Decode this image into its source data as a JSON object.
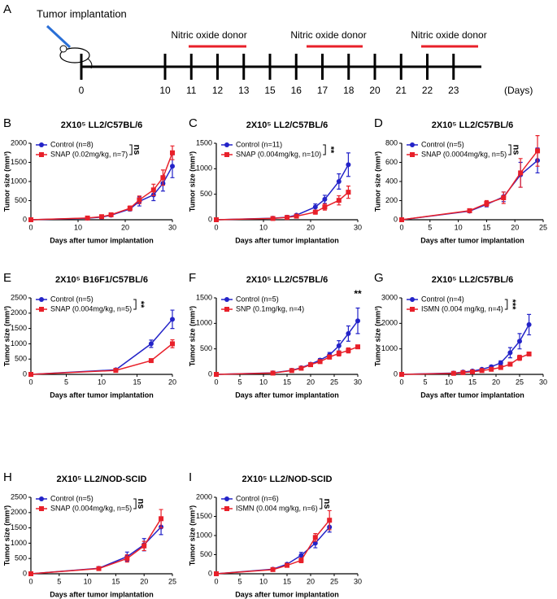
{
  "timeline": {
    "panel": "A",
    "label": "Tumor implantation",
    "treatment_labels": [
      "Nitric oxide donor",
      "Nitric oxide donor",
      "Nitric oxide donor"
    ],
    "days": [
      0,
      10,
      11,
      12,
      13,
      15,
      16,
      17,
      18,
      20,
      21,
      22,
      23
    ],
    "unit": "(Days)"
  },
  "chart_data": [
    {
      "type": "line",
      "panel": "B",
      "title": "2X10⁵ LL2/C57BL/6",
      "xlabel": "Days after tumor implantation",
      "ylabel": "Tumor size (mm³)",
      "annotation": "ns",
      "significance_bracket": true,
      "x": [
        0,
        12,
        15,
        17,
        21,
        23,
        26,
        28,
        30
      ],
      "xlim": [
        0,
        30
      ],
      "xticks": [
        0,
        10,
        20,
        30
      ],
      "ylim": [
        0,
        2000
      ],
      "yticks": [
        0,
        500,
        1000,
        1500,
        2000
      ],
      "series": [
        {
          "name": "Control (n=8)",
          "color": "#2323c8",
          "marker": "circle",
          "values": [
            0,
            40,
            70,
            120,
            280,
            480,
            650,
            950,
            1400
          ],
          "errors": [
            null,
            10,
            15,
            20,
            50,
            120,
            150,
            200,
            300
          ]
        },
        {
          "name": "SNAP (0.02mg/kg, n=7)",
          "color": "#e8202a",
          "marker": "square",
          "values": [
            0,
            45,
            80,
            130,
            300,
            520,
            780,
            1100,
            1750
          ],
          "errors": [
            null,
            10,
            15,
            25,
            60,
            100,
            150,
            200,
            180
          ]
        }
      ]
    },
    {
      "type": "line",
      "panel": "C",
      "title": "2X10⁵ LL2/C57BL/6",
      "xlabel": "Days after tumor implantation",
      "ylabel": "Tumor size (mm³)",
      "annotation": "**",
      "significance_bracket": true,
      "x": [
        0,
        12,
        15,
        17,
        21,
        23,
        26,
        28
      ],
      "xlim": [
        0,
        30
      ],
      "xticks": [
        0,
        10,
        20,
        30
      ],
      "ylim": [
        0,
        1500
      ],
      "yticks": [
        0,
        500,
        1000,
        1500
      ],
      "series": [
        {
          "name": "Control (n=11)",
          "color": "#2323c8",
          "marker": "circle",
          "values": [
            0,
            30,
            50,
            90,
            250,
            400,
            750,
            1080
          ],
          "errors": [
            null,
            5,
            10,
            15,
            60,
            80,
            150,
            230
          ]
        },
        {
          "name": "SNAP (0.004mg/kg, n=10)",
          "color": "#e8202a",
          "marker": "square",
          "values": [
            0,
            25,
            45,
            70,
            150,
            250,
            380,
            540
          ],
          "errors": [
            null,
            5,
            10,
            15,
            40,
            60,
            90,
            120
          ]
        }
      ]
    },
    {
      "type": "line",
      "panel": "D",
      "title": "2X10⁵ LL2/C57BL/6",
      "xlabel": "Days after tumor implantation",
      "ylabel": "Tumor size (mm³)",
      "annotation": "ns",
      "significance_bracket": true,
      "x": [
        0,
        12,
        15,
        18,
        21,
        24
      ],
      "xlim": [
        0,
        25
      ],
      "xticks": [
        0,
        5,
        10,
        15,
        20,
        25
      ],
      "ylim": [
        0,
        800
      ],
      "yticks": [
        0,
        200,
        400,
        600,
        800
      ],
      "series": [
        {
          "name": "Control (n=5)",
          "color": "#2323c8",
          "marker": "circle",
          "values": [
            0,
            90,
            160,
            240,
            470,
            620
          ],
          "errors": [
            null,
            15,
            25,
            50,
            130,
            130
          ]
        },
        {
          "name": "SNAP (0.0004mg/kg, n=5)",
          "color": "#e8202a",
          "marker": "square",
          "values": [
            0,
            95,
            170,
            230,
            490,
            720
          ],
          "errors": [
            null,
            15,
            30,
            60,
            150,
            160
          ]
        }
      ]
    },
    {
      "type": "line",
      "panel": "E",
      "title": "2X10⁵ B16F1/C57BL/6",
      "xlabel": "Days after tumor implantation",
      "ylabel": "Tumor size (mm³)",
      "annotation": "**",
      "significance_bracket": true,
      "x": [
        0,
        12,
        17,
        20
      ],
      "xlim": [
        0,
        20
      ],
      "xticks": [
        0,
        5,
        10,
        15,
        20
      ],
      "ylim": [
        0,
        2500
      ],
      "yticks": [
        0,
        500,
        1000,
        1500,
        2000,
        2500
      ],
      "series": [
        {
          "name": "Control (n=5)",
          "color": "#2323c8",
          "marker": "circle",
          "values": [
            0,
            150,
            1000,
            1800
          ],
          "errors": [
            null,
            20,
            120,
            300
          ]
        },
        {
          "name": "SNAP (0.004mg/kg, n=5)",
          "color": "#e8202a",
          "marker": "square",
          "values": [
            0,
            130,
            450,
            1000
          ],
          "errors": [
            null,
            20,
            40,
            130
          ]
        }
      ]
    },
    {
      "type": "line",
      "panel": "F",
      "title": "2X10⁵ LL2/C57BL/6",
      "xlabel": "Days after tumor implantation",
      "ylabel": "Tumor size (mm³)",
      "annotation": "**",
      "significance_bracket": false,
      "x": [
        0,
        12,
        16,
        18,
        20,
        22,
        24,
        26,
        28,
        30
      ],
      "xlim": [
        0,
        30
      ],
      "xticks": [
        0,
        5,
        10,
        15,
        20,
        25,
        30
      ],
      "ylim": [
        0,
        1500
      ],
      "yticks": [
        0,
        500,
        1000,
        1500
      ],
      "series": [
        {
          "name": "Control (n=5)",
          "color": "#2323c8",
          "marker": "circle",
          "values": [
            0,
            30,
            80,
            130,
            200,
            280,
            380,
            560,
            800,
            1050
          ],
          "errors": [
            null,
            5,
            10,
            15,
            25,
            30,
            50,
            100,
            150,
            250
          ]
        },
        {
          "name": "SNP (0.1mg/kg, n=4)",
          "color": "#e8202a",
          "marker": "square",
          "values": [
            0,
            25,
            75,
            120,
            190,
            250,
            340,
            410,
            470,
            540
          ],
          "errors": [
            null,
            5,
            10,
            15,
            20,
            25,
            40,
            50,
            50,
            30
          ]
        }
      ]
    },
    {
      "type": "line",
      "panel": "G",
      "title": "2X10⁵ LL2/C57BL/6",
      "xlabel": "Days after tumor implantation",
      "ylabel": "Tumor size (mm³)",
      "annotation": "***",
      "significance_bracket": true,
      "x": [
        0,
        11,
        13,
        15,
        17,
        19,
        21,
        23,
        25,
        27
      ],
      "xlim": [
        0,
        30
      ],
      "xticks": [
        0,
        5,
        10,
        15,
        20,
        25,
        30
      ],
      "ylim": [
        0,
        3000
      ],
      "yticks": [
        0,
        1000,
        2000,
        3000
      ],
      "series": [
        {
          "name": "Control (n=4)",
          "color": "#2323c8",
          "marker": "circle",
          "values": [
            0,
            50,
            90,
            130,
            200,
            300,
            450,
            850,
            1300,
            1950
          ],
          "errors": [
            null,
            10,
            15,
            20,
            30,
            50,
            80,
            200,
            300,
            400
          ]
        },
        {
          "name": "ISMN (0.004 mg/kg, n=4)",
          "color": "#e8202a",
          "marker": "square",
          "values": [
            0,
            40,
            70,
            100,
            150,
            200,
            270,
            400,
            650,
            800
          ],
          "errors": [
            null,
            10,
            10,
            15,
            20,
            30,
            40,
            60,
            100,
            60
          ]
        }
      ]
    },
    {
      "type": "line",
      "panel": "H",
      "title": "2X10⁵ LL2/NOD-SCID",
      "xlabel": "Days after tumor implantation",
      "ylabel": "Tumor size (mm³)",
      "annotation": "ns",
      "significance_bracket": true,
      "x": [
        0,
        12,
        17,
        20,
        23
      ],
      "xlim": [
        0,
        25
      ],
      "xticks": [
        0,
        5,
        10,
        15,
        20,
        25
      ],
      "ylim": [
        0,
        2500
      ],
      "yticks": [
        0,
        500,
        1000,
        1500,
        2000,
        2500
      ],
      "series": [
        {
          "name": "Control (n=5)",
          "color": "#2323c8",
          "marker": "circle",
          "values": [
            0,
            180,
            560,
            950,
            1530
          ],
          "errors": [
            null,
            30,
            150,
            200,
            250
          ]
        },
        {
          "name": "SNAP (0.004mg/kg, n=5)",
          "color": "#e8202a",
          "marker": "square",
          "values": [
            0,
            170,
            500,
            910,
            1800
          ],
          "errors": [
            null,
            30,
            120,
            150,
            300
          ]
        }
      ]
    },
    {
      "type": "line",
      "panel": "I",
      "title": "2X10⁵ LL2/NOD-SCID",
      "xlabel": "Days after tumor implantation",
      "ylabel": "Tumor size (mm³)",
      "annotation": "ns",
      "significance_bracket": true,
      "x": [
        0,
        12,
        15,
        18,
        21,
        24
      ],
      "xlim": [
        0,
        30
      ],
      "xticks": [
        0,
        5,
        10,
        15,
        20,
        25,
        30
      ],
      "ylim": [
        0,
        2000
      ],
      "yticks": [
        0,
        500,
        1000,
        1500,
        2000
      ],
      "series": [
        {
          "name": "Control (n=6)",
          "color": "#2323c8",
          "marker": "circle",
          "values": [
            0,
            120,
            250,
            480,
            800,
            1220
          ],
          "errors": [
            null,
            20,
            30,
            80,
            120,
            130
          ]
        },
        {
          "name": "ISMN (0.004 mg/kg, n=6)",
          "color": "#e8202a",
          "marker": "square",
          "values": [
            0,
            110,
            220,
            350,
            950,
            1400
          ],
          "errors": [
            null,
            15,
            30,
            60,
            100,
            250
          ]
        }
      ]
    }
  ]
}
